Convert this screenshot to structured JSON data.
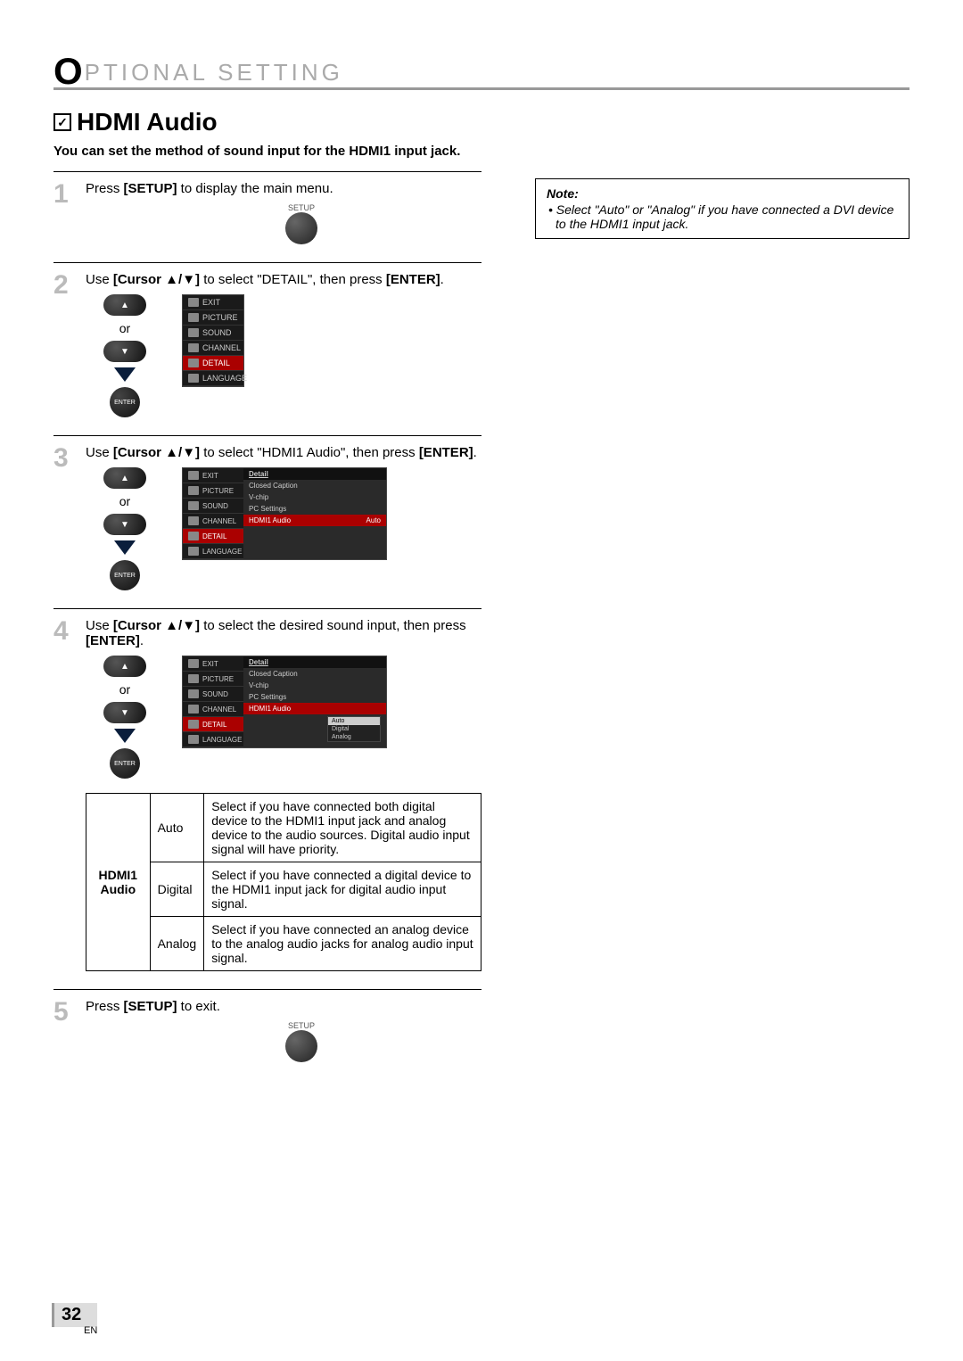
{
  "header": {
    "big_letter": "O",
    "rest": "PTIONAL   SETTING"
  },
  "section": {
    "check": "✓",
    "title": "HDMI Audio",
    "subtitle": "You can set the method of sound input for the HDMI1 input jack."
  },
  "steps": {
    "s1": {
      "num": "1",
      "pre": "Press ",
      "b1": "[SETUP]",
      "post": " to display the main menu.",
      "btn_label": "SETUP"
    },
    "s2": {
      "num": "2",
      "pre": "Use ",
      "b1": "[Cursor ▲/▼]",
      "mid": " to select \"DETAIL\", then press ",
      "b2": "[ENTER]",
      "post": ".",
      "or": "or",
      "enter": "ENTER"
    },
    "s3": {
      "num": "3",
      "pre": "Use ",
      "b1": "[Cursor ▲/▼]",
      "mid": " to select \"HDMI1 Audio\", then press ",
      "b2": "[ENTER]",
      "post": ".",
      "or": "or",
      "enter": "ENTER"
    },
    "s4": {
      "num": "4",
      "pre": "Use ",
      "b1": "[Cursor ▲/▼]",
      "mid": " to select the desired sound input, then press ",
      "b2": "[ENTER]",
      "post": ".",
      "or": "or",
      "enter": "ENTER"
    },
    "s5": {
      "num": "5",
      "pre": "Press ",
      "b1": "[SETUP]",
      "post": " to exit.",
      "btn_label": "SETUP"
    }
  },
  "menus": {
    "vertical": {
      "items": [
        "EXIT",
        "PICTURE",
        "SOUND",
        "CHANNEL",
        "DETAIL",
        "LANGUAGE"
      ],
      "selected_index": 4
    },
    "detail_s3": {
      "left": [
        "EXIT",
        "PICTURE",
        "SOUND",
        "CHANNEL",
        "DETAIL",
        "LANGUAGE"
      ],
      "left_sel": 4,
      "header": "Detail",
      "rows": [
        {
          "label": "Closed Caption",
          "val": ""
        },
        {
          "label": "V-chip",
          "val": ""
        },
        {
          "label": "PC Settings",
          "val": ""
        },
        {
          "label": "HDMI1 Audio",
          "val": "Auto",
          "sel": true
        }
      ]
    },
    "detail_s4": {
      "left": [
        "EXIT",
        "PICTURE",
        "SOUND",
        "CHANNEL",
        "DETAIL",
        "LANGUAGE"
      ],
      "left_sel": 4,
      "header": "Detail",
      "rows": [
        {
          "label": "Closed Caption",
          "val": ""
        },
        {
          "label": "V-chip",
          "val": ""
        },
        {
          "label": "PC Settings",
          "val": ""
        },
        {
          "label": "HDMI1 Audio",
          "val": "",
          "sel": true
        }
      ],
      "options": [
        "Auto",
        "Digital",
        "Analog"
      ],
      "opt_sel": 0
    }
  },
  "table": {
    "row_header": "HDMI1 Audio",
    "rows": [
      {
        "opt": "Auto",
        "desc": "Select if you have connected both digital device to the HDMI1 input jack and analog device to the audio sources. Digital audio input signal will have priority."
      },
      {
        "opt": "Digital",
        "desc": "Select if you have connected a digital device to the HDMI1 input jack for digital audio input signal."
      },
      {
        "opt": "Analog",
        "desc": "Select if you have connected an analog device to the analog audio jacks for analog audio input signal."
      }
    ]
  },
  "note": {
    "title": "Note:",
    "body": "• Select \"Auto\" or \"Analog\" if you have connected a DVI device to the HDMI1 input jack."
  },
  "page": {
    "num": "32",
    "lang": "EN"
  },
  "colors": {
    "header_rule": "#999999",
    "header_text": "#aaaaaa",
    "step_num": "#bbbbbb",
    "menu_bg": "#1a1a1a",
    "menu_sel": "#aa0000",
    "triangle": "#0a1e3c"
  }
}
